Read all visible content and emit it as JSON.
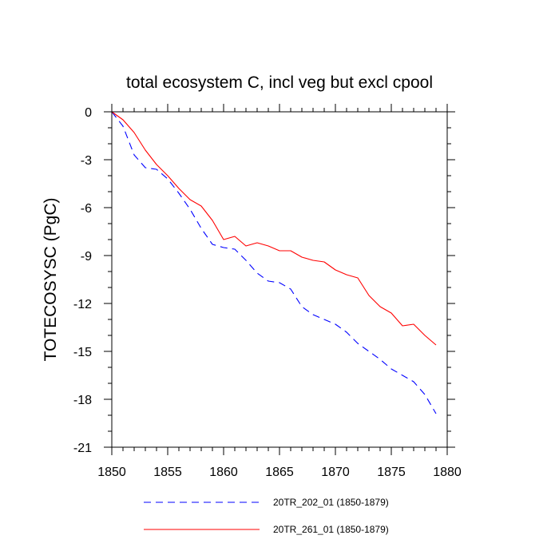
{
  "chart_data": {
    "type": "line",
    "title": "total ecosystem C, incl veg but excl cpool",
    "xlabel": "",
    "ylabel": "TOTECOSYSC  (PgC)",
    "xlim": [
      1850,
      1880
    ],
    "ylim": [
      -21,
      0
    ],
    "xticks": [
      1850,
      1855,
      1860,
      1865,
      1870,
      1875,
      1880
    ],
    "xtick_labels": [
      "1850",
      "1855",
      "1860",
      "1865",
      "1870",
      "1875",
      "1880"
    ],
    "yticks": [
      0,
      -3,
      -6,
      -9,
      -12,
      -15,
      -18,
      -21
    ],
    "ytick_labels": [
      "0",
      "-3",
      "-6",
      "-9",
      "-12",
      "-15",
      "-18",
      "-21"
    ],
    "x_minor_step": 1,
    "y_minor_step": 1,
    "grid": false,
    "legend_position": "bottom",
    "x": [
      1850,
      1851,
      1852,
      1853,
      1854,
      1855,
      1856,
      1857,
      1858,
      1859,
      1860,
      1861,
      1862,
      1863,
      1864,
      1865,
      1866,
      1867,
      1868,
      1869,
      1870,
      1871,
      1872,
      1873,
      1874,
      1875,
      1876,
      1877,
      1878,
      1879
    ],
    "series": [
      {
        "name": "20TR_202_01 (1850-1879)",
        "color": "#0000ff",
        "dash": "dashed",
        "values": [
          0,
          -0.9,
          -2.7,
          -3.5,
          -3.6,
          -4.2,
          -5.1,
          -6.1,
          -7.3,
          -8.3,
          -8.5,
          -8.6,
          -9.3,
          -10.1,
          -10.6,
          -10.7,
          -11.1,
          -12.2,
          -12.7,
          -13.0,
          -13.3,
          -13.8,
          -14.5,
          -15.0,
          -15.5,
          -16.1,
          -16.5,
          -16.9,
          -17.7,
          -18.9
        ]
      },
      {
        "name": "20TR_261_01 (1850-1879)",
        "color": "#ff0000",
        "dash": "solid",
        "values": [
          0,
          -0.5,
          -1.3,
          -2.4,
          -3.3,
          -4.0,
          -4.8,
          -5.5,
          -5.9,
          -6.8,
          -8.0,
          -7.8,
          -8.4,
          -8.2,
          -8.4,
          -8.7,
          -8.7,
          -9.1,
          -9.3,
          -9.4,
          -9.9,
          -10.2,
          -10.4,
          -11.5,
          -12.2,
          -12.6,
          -13.4,
          -13.3,
          -14.0,
          -14.6
        ]
      }
    ]
  }
}
